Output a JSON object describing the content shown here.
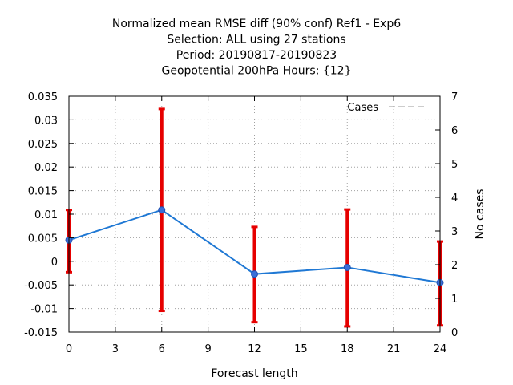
{
  "chart_data": {
    "type": "line",
    "title_lines": [
      "Normalized mean RMSE diff (90% conf) Ref1 - Exp6",
      "Selection: ALL using    27 stations",
      "Period: 20190817-20190823",
      "Geopotential 200hPa   Hours: {12}"
    ],
    "xlabel": "Forecast length",
    "ylabel_right": "No cases",
    "x_ticks": [
      "0",
      "3",
      "6",
      "9",
      "12",
      "15",
      "18",
      "21",
      "24"
    ],
    "y_ticks": [
      "0.035",
      "0.03",
      "0.025",
      "0.02",
      "0.015",
      "0.01",
      "0.005",
      "0",
      "-0.005",
      "-0.01",
      "-0.015"
    ],
    "y2_ticks": [
      "7",
      "6",
      "5",
      "4",
      "3",
      "2",
      "1",
      "0"
    ],
    "xlim": [
      0,
      24
    ],
    "ylim": [
      -0.015,
      0.035
    ],
    "y2lim": [
      0,
      7
    ],
    "grid": true,
    "legend": {
      "position": "top-right",
      "entries": [
        "Cases"
      ]
    },
    "series": [
      {
        "color": "#1f78d4",
        "x": [
          0,
          6,
          12,
          18,
          24
        ],
        "y": [
          0.0045,
          0.0109,
          -0.0027,
          -0.0013,
          -0.0045
        ],
        "err_low": [
          -0.0023,
          -0.0105,
          -0.0129,
          -0.0138,
          -0.0136
        ],
        "err_high": [
          0.0109,
          0.0323,
          0.0073,
          0.011,
          0.0042
        ]
      },
      {
        "name": "Cases",
        "color": "#999999",
        "dashed": true,
        "axis": "right",
        "x": [
          0,
          6,
          12,
          18,
          24
        ],
        "y": [
          7,
          7,
          7,
          7,
          7
        ]
      }
    ],
    "error_bar_color": "#e60000"
  }
}
